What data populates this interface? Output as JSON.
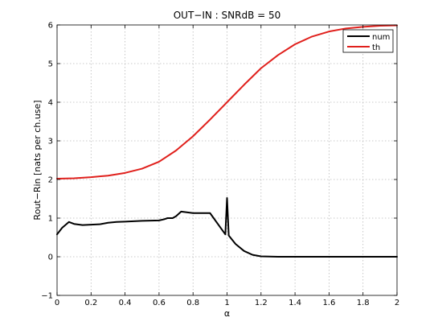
{
  "chart_data": {
    "type": "line",
    "title": "OUT−IN : SNRdB = 50",
    "xlabel": "α",
    "ylabel": "Rout−Rin [nats per ch.use]",
    "xlim": [
      0,
      2
    ],
    "ylim": [
      -1,
      6
    ],
    "xticks": [
      0,
      0.2,
      0.4,
      0.6,
      0.8,
      1,
      1.2,
      1.4,
      1.6,
      1.8,
      2
    ],
    "xtick_labels": [
      "0",
      "0.2",
      "0.4",
      "0.6",
      "0.8",
      "1",
      "1.2",
      "1.4",
      "1.6",
      "1.8",
      "2"
    ],
    "yticks": [
      -1,
      0,
      1,
      2,
      3,
      4,
      5,
      6
    ],
    "ytick_labels": [
      "−1",
      "0",
      "1",
      "2",
      "3",
      "4",
      "5",
      "6"
    ],
    "grid": true,
    "legend_position": "top-right",
    "series": [
      {
        "name": "num",
        "color": "#000000",
        "x": [
          0,
          0.03,
          0.07,
          0.1,
          0.15,
          0.2,
          0.25,
          0.3,
          0.35,
          0.4,
          0.5,
          0.6,
          0.63,
          0.65,
          0.68,
          0.7,
          0.73,
          0.8,
          0.9,
          0.99,
          1.0,
          1.01,
          1.05,
          1.1,
          1.15,
          1.2,
          1.3,
          1.4,
          1.5,
          1.6,
          1.7,
          1.8,
          1.9,
          2.0
        ],
        "y": [
          0.58,
          0.75,
          0.9,
          0.85,
          0.82,
          0.83,
          0.84,
          0.88,
          0.9,
          0.91,
          0.93,
          0.94,
          0.97,
          1.0,
          1.0,
          1.05,
          1.17,
          1.13,
          1.13,
          0.58,
          1.52,
          0.55,
          0.33,
          0.15,
          0.05,
          0.01,
          0.0,
          0.0,
          0.0,
          0.0,
          0.0,
          0.0,
          0.0,
          0.0
        ]
      },
      {
        "name": "th",
        "color": "#e0201c",
        "x": [
          0,
          0.1,
          0.2,
          0.3,
          0.4,
          0.5,
          0.6,
          0.7,
          0.8,
          0.9,
          1.0,
          1.1,
          1.2,
          1.3,
          1.4,
          1.5,
          1.6,
          1.7,
          1.8,
          1.9,
          2.0
        ],
        "y": [
          2.02,
          2.03,
          2.06,
          2.1,
          2.17,
          2.28,
          2.46,
          2.75,
          3.12,
          3.55,
          4.0,
          4.45,
          4.88,
          5.22,
          5.5,
          5.7,
          5.83,
          5.91,
          5.95,
          5.98,
          5.99
        ]
      }
    ]
  }
}
